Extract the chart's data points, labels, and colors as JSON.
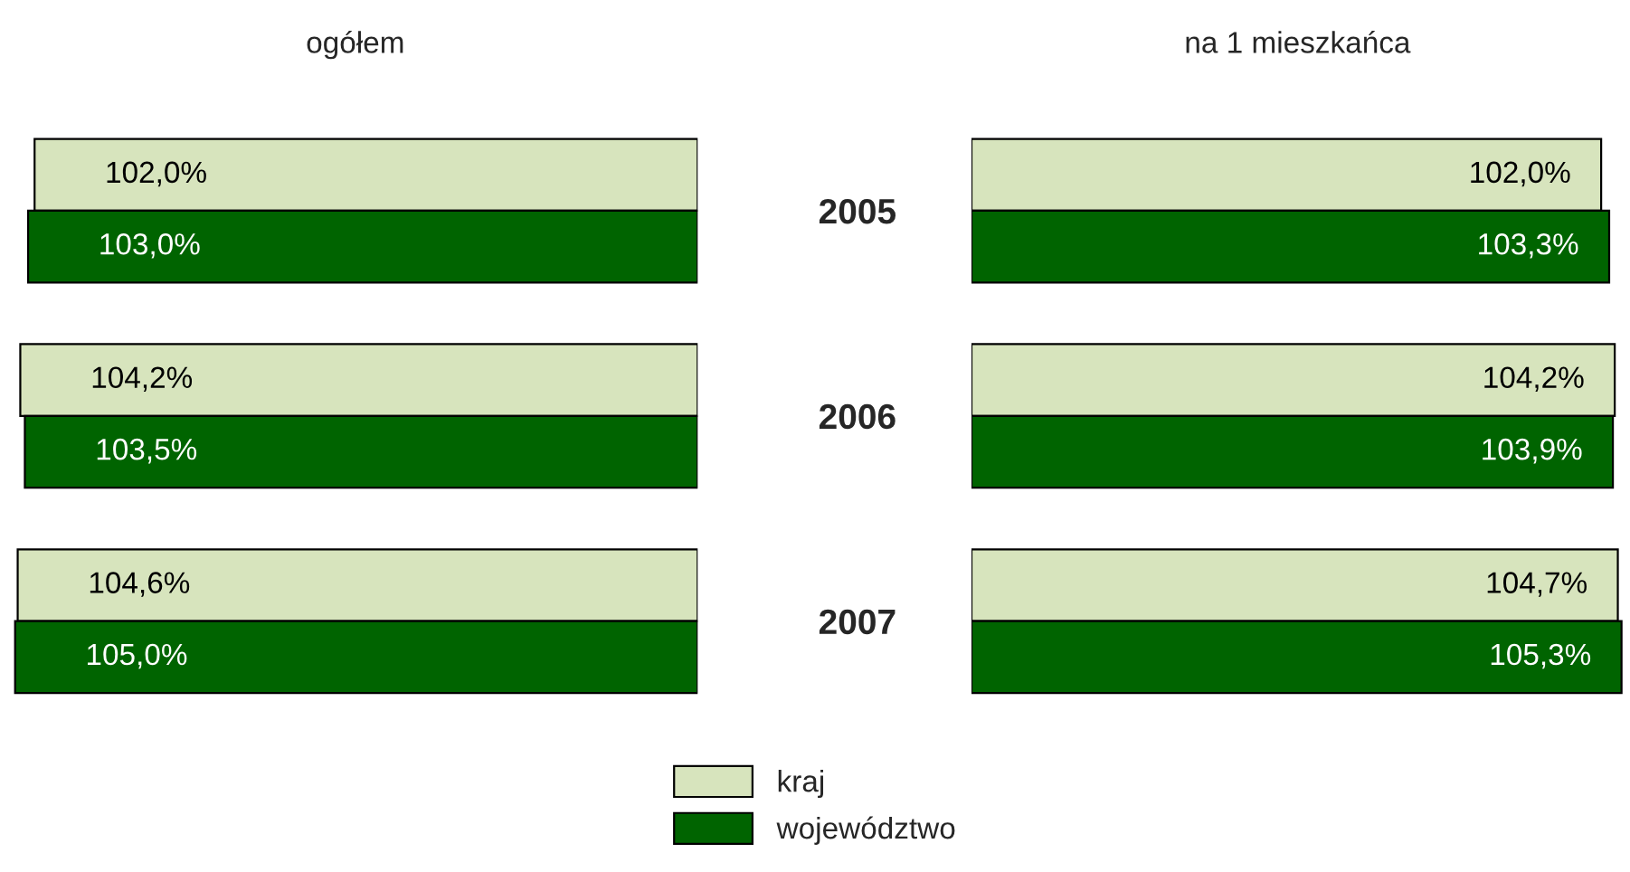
{
  "chart_data": [
    {
      "type": "bar",
      "orientation": "horizontal",
      "title": "ogółem",
      "categories": [
        "2005",
        "2006",
        "2007"
      ],
      "tick_labels": "y",
      "data_labels": true,
      "legend": "bottom",
      "series": [
        {
          "name": "kraj",
          "color": "#d7e4bd",
          "values": [
            102.0,
            104.2,
            104.6
          ],
          "value_labels": [
            "102,0%",
            "104,2%",
            "104,6%"
          ]
        },
        {
          "name": "województwo",
          "color": "#006400",
          "values": [
            103.0,
            103.5,
            105.0
          ],
          "value_labels": [
            "103,0%",
            "103,5%",
            "105,0%"
          ]
        }
      ]
    },
    {
      "type": "bar",
      "orientation": "horizontal",
      "title": "na 1 mieszkańca",
      "categories": [
        "2005",
        "2006",
        "2007"
      ],
      "tick_labels": false,
      "data_labels": true,
      "series": [
        {
          "color": "#d7e4bd",
          "values": [
            102.0,
            104.2,
            104.7
          ],
          "value_labels": [
            "102,0%",
            "104,2%",
            "104,7%"
          ]
        },
        {
          "color": "#006400",
          "values": [
            103.3,
            103.9,
            105.3
          ],
          "value_labels": [
            "103,3%",
            "103,9%",
            "105,3%"
          ]
        }
      ]
    }
  ]
}
